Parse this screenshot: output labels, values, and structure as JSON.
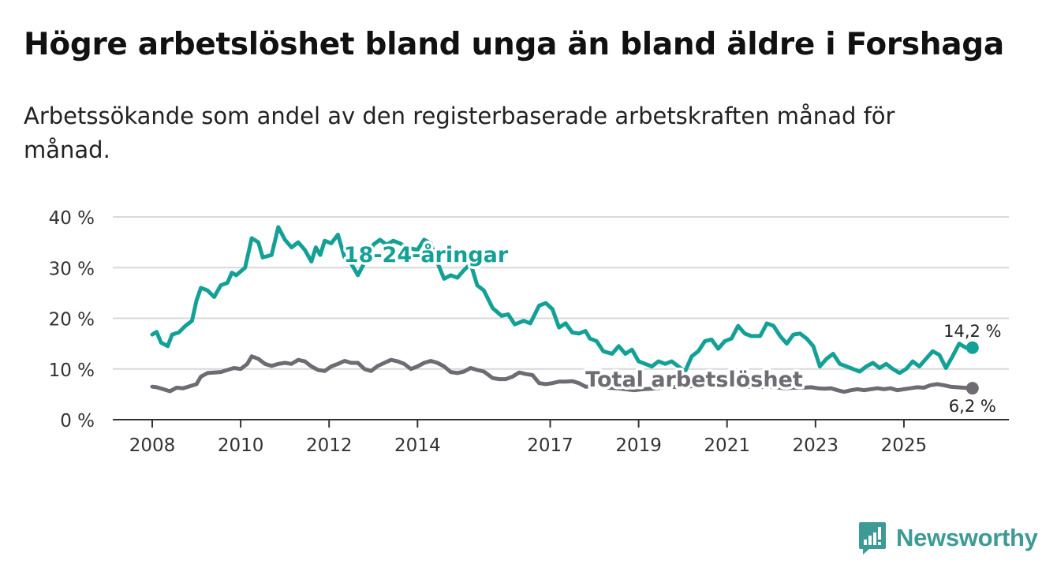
{
  "title": "Högre arbetslöshet bland unga än bland äldre i Forshaga",
  "subtitle": "Arbetssökande som andel av den registerbaserade arbetskraften månad för månad.",
  "brand": "Newsworthy",
  "colors": {
    "youth": "#13a096",
    "total": "#6e6b72",
    "grid": "#d9d9d9",
    "axis": "#333333",
    "brand": "#3d9a95"
  },
  "chart_data": {
    "type": "line",
    "title": "Högre arbetslöshet bland unga än bland äldre i Forshaga",
    "xlabel": "",
    "ylabel": "",
    "xlim": [
      2008,
      2026.5
    ],
    "ylim": [
      0,
      40
    ],
    "y_ticks": [
      0,
      10,
      20,
      30,
      40
    ],
    "y_tick_labels": [
      "0 %",
      "10 %",
      "20 %",
      "30 %",
      "40 %"
    ],
    "x_ticks": [
      2008,
      2010,
      2012,
      2014,
      2017,
      2019,
      2021,
      2023,
      2025
    ],
    "x_tick_labels": [
      "2008",
      "2010",
      "2012",
      "2014",
      "2017",
      "2019",
      "2021",
      "2023",
      "2025"
    ],
    "grid": true,
    "series": [
      {
        "name": "18-24-åringar",
        "label": "18-24-åringar",
        "color": "#13a096",
        "end_label": "14,2 %",
        "points": [
          [
            2008.0,
            16.8
          ],
          [
            2008.1,
            17.3
          ],
          [
            2008.2,
            15.2
          ],
          [
            2008.35,
            14.5
          ],
          [
            2008.45,
            16.8
          ],
          [
            2008.6,
            17.2
          ],
          [
            2008.75,
            18.5
          ],
          [
            2008.9,
            19.5
          ],
          [
            2009.0,
            23.5
          ],
          [
            2009.1,
            26.0
          ],
          [
            2009.25,
            25.5
          ],
          [
            2009.4,
            24.2
          ],
          [
            2009.55,
            26.5
          ],
          [
            2009.7,
            27.0
          ],
          [
            2009.8,
            29.0
          ],
          [
            2009.9,
            28.5
          ],
          [
            2010.1,
            30.0
          ],
          [
            2010.25,
            35.8
          ],
          [
            2010.4,
            35.0
          ],
          [
            2010.5,
            32.0
          ],
          [
            2010.7,
            32.5
          ],
          [
            2010.85,
            38.0
          ],
          [
            2011.0,
            35.5
          ],
          [
            2011.15,
            34.0
          ],
          [
            2011.3,
            35.0
          ],
          [
            2011.45,
            33.5
          ],
          [
            2011.6,
            31.2
          ],
          [
            2011.7,
            34.0
          ],
          [
            2011.8,
            32.5
          ],
          [
            2011.9,
            35.3
          ],
          [
            2012.05,
            34.8
          ],
          [
            2012.2,
            36.5
          ],
          [
            2012.35,
            32.0
          ],
          [
            2012.5,
            30.8
          ],
          [
            2012.65,
            28.5
          ],
          [
            2012.8,
            31.0
          ],
          [
            2013.0,
            34.5
          ],
          [
            2013.15,
            35.5
          ],
          [
            2013.3,
            34.5
          ],
          [
            2013.45,
            35.3
          ],
          [
            2013.6,
            34.8
          ],
          [
            2013.75,
            34.0
          ],
          [
            2014.0,
            33.5
          ],
          [
            2014.15,
            35.5
          ],
          [
            2014.3,
            34.8
          ],
          [
            2014.45,
            31.0
          ],
          [
            2014.6,
            27.8
          ],
          [
            2014.75,
            28.5
          ],
          [
            2014.9,
            28.0
          ],
          [
            2015.05,
            29.5
          ],
          [
            2015.2,
            30.8
          ],
          [
            2015.35,
            26.5
          ],
          [
            2015.5,
            25.5
          ],
          [
            2015.7,
            22.0
          ],
          [
            2015.9,
            20.5
          ],
          [
            2016.05,
            20.8
          ],
          [
            2016.2,
            18.8
          ],
          [
            2016.4,
            19.5
          ],
          [
            2016.55,
            19.0
          ],
          [
            2016.75,
            22.5
          ],
          [
            2016.9,
            23.0
          ],
          [
            2017.05,
            21.8
          ],
          [
            2017.2,
            18.2
          ],
          [
            2017.35,
            19.0
          ],
          [
            2017.5,
            17.2
          ],
          [
            2017.65,
            17.0
          ],
          [
            2017.8,
            17.5
          ],
          [
            2017.9,
            16.0
          ],
          [
            2018.05,
            15.5
          ],
          [
            2018.2,
            13.5
          ],
          [
            2018.4,
            13.0
          ],
          [
            2018.55,
            14.5
          ],
          [
            2018.7,
            13.0
          ],
          [
            2018.85,
            13.8
          ],
          [
            2019.0,
            11.5
          ],
          [
            2019.15,
            11.0
          ],
          [
            2019.3,
            10.5
          ],
          [
            2019.45,
            11.5
          ],
          [
            2019.6,
            11.0
          ],
          [
            2019.75,
            11.5
          ],
          [
            2019.9,
            10.5
          ],
          [
            2020.05,
            9.5
          ],
          [
            2020.2,
            12.5
          ],
          [
            2020.35,
            13.5
          ],
          [
            2020.5,
            15.5
          ],
          [
            2020.65,
            15.8
          ],
          [
            2020.8,
            14.0
          ],
          [
            2020.95,
            15.5
          ],
          [
            2021.1,
            16.0
          ],
          [
            2021.25,
            18.5
          ],
          [
            2021.4,
            17.0
          ],
          [
            2021.55,
            16.5
          ],
          [
            2021.75,
            16.5
          ],
          [
            2021.9,
            19.0
          ],
          [
            2022.05,
            18.5
          ],
          [
            2022.2,
            16.5
          ],
          [
            2022.35,
            15.0
          ],
          [
            2022.5,
            16.8
          ],
          [
            2022.65,
            17.0
          ],
          [
            2022.8,
            16.0
          ],
          [
            2022.95,
            14.5
          ],
          [
            2023.1,
            10.5
          ],
          [
            2023.25,
            12.0
          ],
          [
            2023.4,
            13.0
          ],
          [
            2023.55,
            11.0
          ],
          [
            2023.7,
            10.5
          ],
          [
            2023.85,
            10.0
          ],
          [
            2024.0,
            9.5
          ],
          [
            2024.15,
            10.5
          ],
          [
            2024.3,
            11.2
          ],
          [
            2024.45,
            10.2
          ],
          [
            2024.6,
            11.0
          ],
          [
            2024.75,
            10.0
          ],
          [
            2024.9,
            9.2
          ],
          [
            2025.05,
            10.0
          ],
          [
            2025.2,
            11.5
          ],
          [
            2025.35,
            10.5
          ],
          [
            2025.5,
            12.0
          ],
          [
            2025.65,
            13.5
          ],
          [
            2025.8,
            12.8
          ],
          [
            2025.95,
            10.2
          ],
          [
            2026.1,
            12.5
          ],
          [
            2026.25,
            15.0
          ],
          [
            2026.4,
            14.2
          ],
          [
            2026.55,
            14.2
          ]
        ]
      },
      {
        "name": "Total arbetslöshet",
        "label": "Total arbetslöshet",
        "color": "#6e6b72",
        "end_label": "6,2 %",
        "points": [
          [
            2008.0,
            6.5
          ],
          [
            2008.1,
            6.4
          ],
          [
            2008.25,
            6.0
          ],
          [
            2008.4,
            5.6
          ],
          [
            2008.55,
            6.3
          ],
          [
            2008.7,
            6.2
          ],
          [
            2008.85,
            6.6
          ],
          [
            2009.0,
            7.0
          ],
          [
            2009.1,
            8.5
          ],
          [
            2009.25,
            9.2
          ],
          [
            2009.4,
            9.3
          ],
          [
            2009.55,
            9.4
          ],
          [
            2009.7,
            9.8
          ],
          [
            2009.85,
            10.2
          ],
          [
            2010.0,
            10.0
          ],
          [
            2010.15,
            11.0
          ],
          [
            2010.25,
            12.5
          ],
          [
            2010.4,
            12.0
          ],
          [
            2010.55,
            11.0
          ],
          [
            2010.7,
            10.6
          ],
          [
            2010.85,
            11.0
          ],
          [
            2011.0,
            11.2
          ],
          [
            2011.15,
            11.0
          ],
          [
            2011.3,
            11.8
          ],
          [
            2011.45,
            11.5
          ],
          [
            2011.6,
            10.5
          ],
          [
            2011.75,
            9.8
          ],
          [
            2011.9,
            9.6
          ],
          [
            2012.05,
            10.5
          ],
          [
            2012.2,
            11.0
          ],
          [
            2012.35,
            11.6
          ],
          [
            2012.5,
            11.2
          ],
          [
            2012.65,
            11.2
          ],
          [
            2012.8,
            10.0
          ],
          [
            2012.95,
            9.6
          ],
          [
            2013.1,
            10.6
          ],
          [
            2013.25,
            11.2
          ],
          [
            2013.4,
            11.8
          ],
          [
            2013.55,
            11.5
          ],
          [
            2013.7,
            11.0
          ],
          [
            2013.85,
            10.0
          ],
          [
            2014.0,
            10.5
          ],
          [
            2014.15,
            11.2
          ],
          [
            2014.3,
            11.6
          ],
          [
            2014.45,
            11.2
          ],
          [
            2014.6,
            10.5
          ],
          [
            2014.75,
            9.4
          ],
          [
            2014.9,
            9.2
          ],
          [
            2015.05,
            9.5
          ],
          [
            2015.2,
            10.2
          ],
          [
            2015.35,
            9.8
          ],
          [
            2015.5,
            9.5
          ],
          [
            2015.7,
            8.2
          ],
          [
            2015.85,
            8.0
          ],
          [
            2016.0,
            8.0
          ],
          [
            2016.15,
            8.5
          ],
          [
            2016.3,
            9.3
          ],
          [
            2016.45,
            9.0
          ],
          [
            2016.6,
            8.8
          ],
          [
            2016.75,
            7.2
          ],
          [
            2016.9,
            7.0
          ],
          [
            2017.05,
            7.2
          ],
          [
            2017.2,
            7.5
          ],
          [
            2017.35,
            7.5
          ],
          [
            2017.5,
            7.6
          ],
          [
            2017.65,
            7.2
          ],
          [
            2017.8,
            6.5
          ],
          [
            2017.95,
            6.6
          ],
          [
            2018.1,
            6.8
          ],
          [
            2018.3,
            6.3
          ],
          [
            2018.5,
            6.2
          ],
          [
            2018.7,
            6.0
          ],
          [
            2018.9,
            5.8
          ],
          [
            2019.1,
            6.0
          ],
          [
            2019.3,
            6.1
          ],
          [
            2019.5,
            6.3
          ],
          [
            2019.7,
            6.5
          ],
          [
            2019.9,
            6.4
          ],
          [
            2020.1,
            6.5
          ],
          [
            2020.3,
            6.7
          ],
          [
            2020.5,
            6.8
          ],
          [
            2020.7,
            6.6
          ],
          [
            2020.9,
            6.5
          ],
          [
            2021.1,
            6.6
          ],
          [
            2021.3,
            6.7
          ],
          [
            2021.5,
            6.5
          ],
          [
            2021.7,
            6.4
          ],
          [
            2021.9,
            6.5
          ],
          [
            2022.1,
            6.4
          ],
          [
            2022.3,
            6.2
          ],
          [
            2022.5,
            6.3
          ],
          [
            2022.7,
            6.3
          ],
          [
            2022.9,
            6.4
          ],
          [
            2023.05,
            6.2
          ],
          [
            2023.2,
            6.1
          ],
          [
            2023.35,
            6.2
          ],
          [
            2023.5,
            5.8
          ],
          [
            2023.65,
            5.5
          ],
          [
            2023.8,
            5.8
          ],
          [
            2023.95,
            6.0
          ],
          [
            2024.1,
            5.8
          ],
          [
            2024.25,
            6.0
          ],
          [
            2024.4,
            6.2
          ],
          [
            2024.55,
            6.0
          ],
          [
            2024.7,
            6.2
          ],
          [
            2024.85,
            5.8
          ],
          [
            2025.0,
            6.0
          ],
          [
            2025.15,
            6.2
          ],
          [
            2025.3,
            6.4
          ],
          [
            2025.45,
            6.3
          ],
          [
            2025.6,
            6.8
          ],
          [
            2025.75,
            7.0
          ],
          [
            2025.9,
            6.8
          ],
          [
            2026.05,
            6.5
          ],
          [
            2026.2,
            6.4
          ],
          [
            2026.35,
            6.3
          ],
          [
            2026.55,
            6.2
          ]
        ]
      }
    ]
  }
}
